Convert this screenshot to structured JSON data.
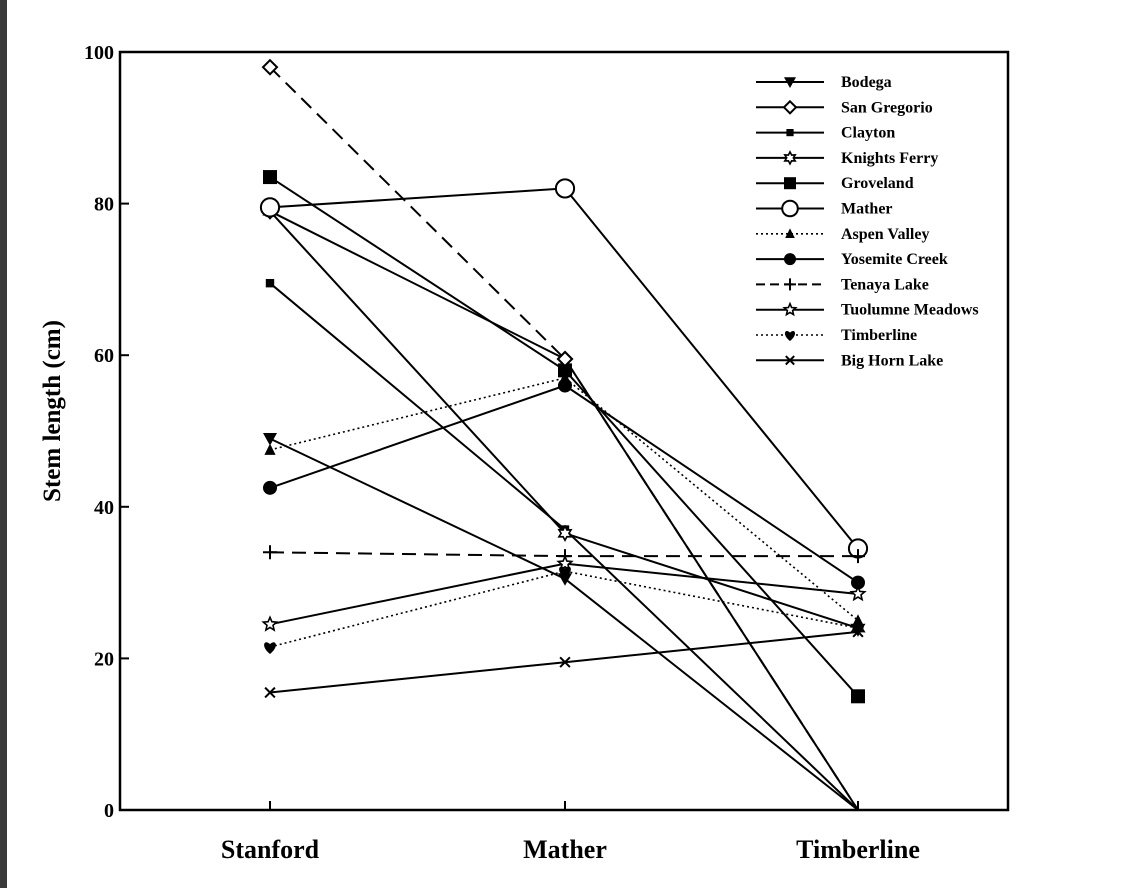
{
  "chart_data": {
    "type": "line",
    "categories": [
      "Stanford",
      "Mather",
      "Timberline"
    ],
    "ylabel": "Stem length (cm)",
    "xlabel": "",
    "ylim": [
      0,
      100
    ],
    "yticks": [
      0,
      20,
      40,
      60,
      80,
      100
    ],
    "grid": false,
    "legend_position": "top-right",
    "series": [
      {
        "name": "Bodega",
        "marker": "triangle-down",
        "dash": "solid",
        "values": [
          49,
          30.5,
          0
        ]
      },
      {
        "name": "San Gregorio",
        "marker": "diamond-open",
        "dash": "solid",
        "values": [
          79,
          59.5,
          0
        ]
      },
      {
        "name": "Clayton",
        "marker": "square-small",
        "dash": "solid",
        "values": [
          69.5,
          37,
          0
        ]
      },
      {
        "name": "Knights Ferry",
        "marker": "star6-open",
        "dash": "solid",
        "values": [
          79,
          36.5,
          24
        ]
      },
      {
        "name": "Groveland",
        "marker": "square",
        "dash": "solid",
        "values": [
          83.5,
          58,
          15
        ]
      },
      {
        "name": "Mather",
        "marker": "circle-open",
        "dash": "solid",
        "values": [
          79.5,
          82,
          34.5
        ]
      },
      {
        "name": "Aspen Valley",
        "marker": "triangle",
        "dash": "dotted",
        "values": [
          47.5,
          57,
          25
        ]
      },
      {
        "name": "Yosemite Creek",
        "marker": "circle",
        "dash": "solid",
        "values": [
          42.5,
          56,
          30
        ]
      },
      {
        "name": "Tenaya Lake",
        "marker": "plus",
        "dash": "dashed",
        "values": [
          34,
          33.5,
          33.5
        ]
      },
      {
        "name": "Tuolumne Meadows",
        "marker": "star-open",
        "dash": "solid",
        "values": [
          24.5,
          32.5,
          28.5
        ]
      },
      {
        "name": "Timberline",
        "marker": "heart",
        "dash": "dotted",
        "values": [
          21.5,
          31.5,
          24
        ]
      },
      {
        "name": "Big Horn Lake",
        "marker": "x",
        "dash": "solid",
        "values": [
          15.5,
          19.5,
          23.5
        ]
      },
      {
        "name": "",
        "marker": "diamond-open",
        "dash": "dashed",
        "values": [
          98,
          59.5,
          0
        ],
        "note": "unlabeled dashed trace"
      }
    ]
  }
}
